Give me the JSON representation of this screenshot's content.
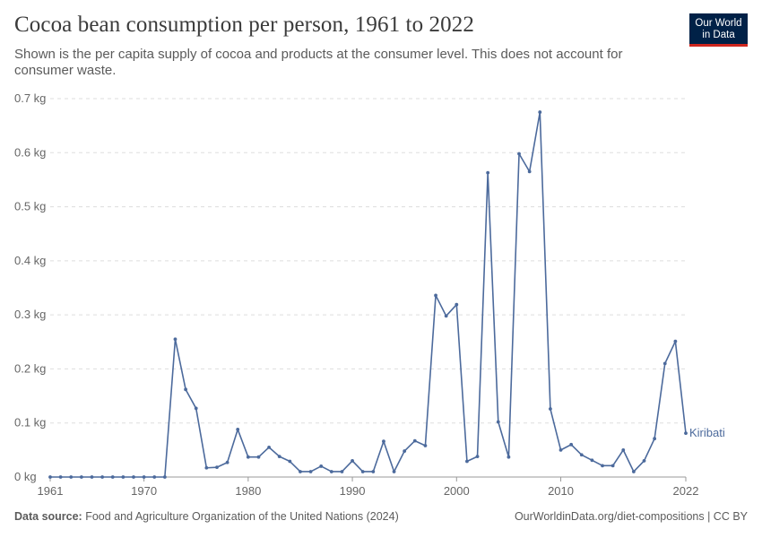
{
  "header": {
    "title": "Cocoa bean consumption per person, 1961 to 2022",
    "subtitle": "Shown is the per capita supply of cocoa and products at the consumer level. This does not account for consumer waste."
  },
  "logo": {
    "line1": "Our World",
    "line2": "in Data",
    "bg_color": "#002147",
    "accent_color": "#ce261e"
  },
  "footer": {
    "source_label": "Data source:",
    "source_text": "Food and Agriculture Organization of the United Nations (2024)",
    "url_text": "OurWorldinData.org/diet-compositions | CC BY"
  },
  "chart_data": {
    "type": "line",
    "title": "Cocoa bean consumption per person, 1961 to 2022",
    "ylim": [
      0,
      0.7
    ],
    "xlim": [
      1961,
      2022
    ],
    "y_ticks": [
      0,
      0.1,
      0.2,
      0.3,
      0.4,
      0.5,
      0.6,
      0.7
    ],
    "y_tick_labels": [
      "0 kg",
      "0.1 kg",
      "0.2 kg",
      "0.3 kg",
      "0.4 kg",
      "0.5 kg",
      "0.6 kg",
      "0.7 kg"
    ],
    "x_ticks": [
      1961,
      1970,
      1980,
      1990,
      2000,
      2010,
      2022
    ],
    "x_tick_labels": [
      "1961",
      "1970",
      "1980",
      "1990",
      "2000",
      "2010",
      "2022"
    ],
    "grid": true,
    "line_color": "#4c6a9c",
    "series": [
      {
        "name": "Kiribati",
        "x": [
          1961,
          1962,
          1963,
          1964,
          1965,
          1966,
          1967,
          1968,
          1969,
          1970,
          1971,
          1972,
          1973,
          1974,
          1975,
          1976,
          1977,
          1978,
          1979,
          1980,
          1981,
          1982,
          1983,
          1984,
          1985,
          1986,
          1987,
          1988,
          1989,
          1990,
          1991,
          1992,
          1993,
          1994,
          1995,
          1996,
          1997,
          1998,
          1999,
          2000,
          2001,
          2002,
          2003,
          2004,
          2005,
          2006,
          2007,
          2008,
          2009,
          2010,
          2011,
          2012,
          2013,
          2014,
          2015,
          2016,
          2017,
          2018,
          2019,
          2020,
          2021,
          2022
        ],
        "values": [
          0,
          0,
          0,
          0,
          0,
          0,
          0,
          0,
          0,
          0,
          0,
          0,
          0.255,
          0.162,
          0.127,
          0.017,
          0.018,
          0.027,
          0.088,
          0.037,
          0.037,
          0.055,
          0.038,
          0.029,
          0.01,
          0.01,
          0.02,
          0.01,
          0.01,
          0.03,
          0.01,
          0.01,
          0.066,
          0.01,
          0.048,
          0.067,
          0.058,
          0.336,
          0.298,
          0.319,
          0.029,
          0.038,
          0.563,
          0.102,
          0.037,
          0.598,
          0.565,
          0.675,
          0.126,
          0.05,
          0.06,
          0.041,
          0.031,
          0.021,
          0.021,
          0.05,
          0.01,
          0.03,
          0.071,
          0.21,
          0.251,
          0.081
        ]
      }
    ]
  }
}
